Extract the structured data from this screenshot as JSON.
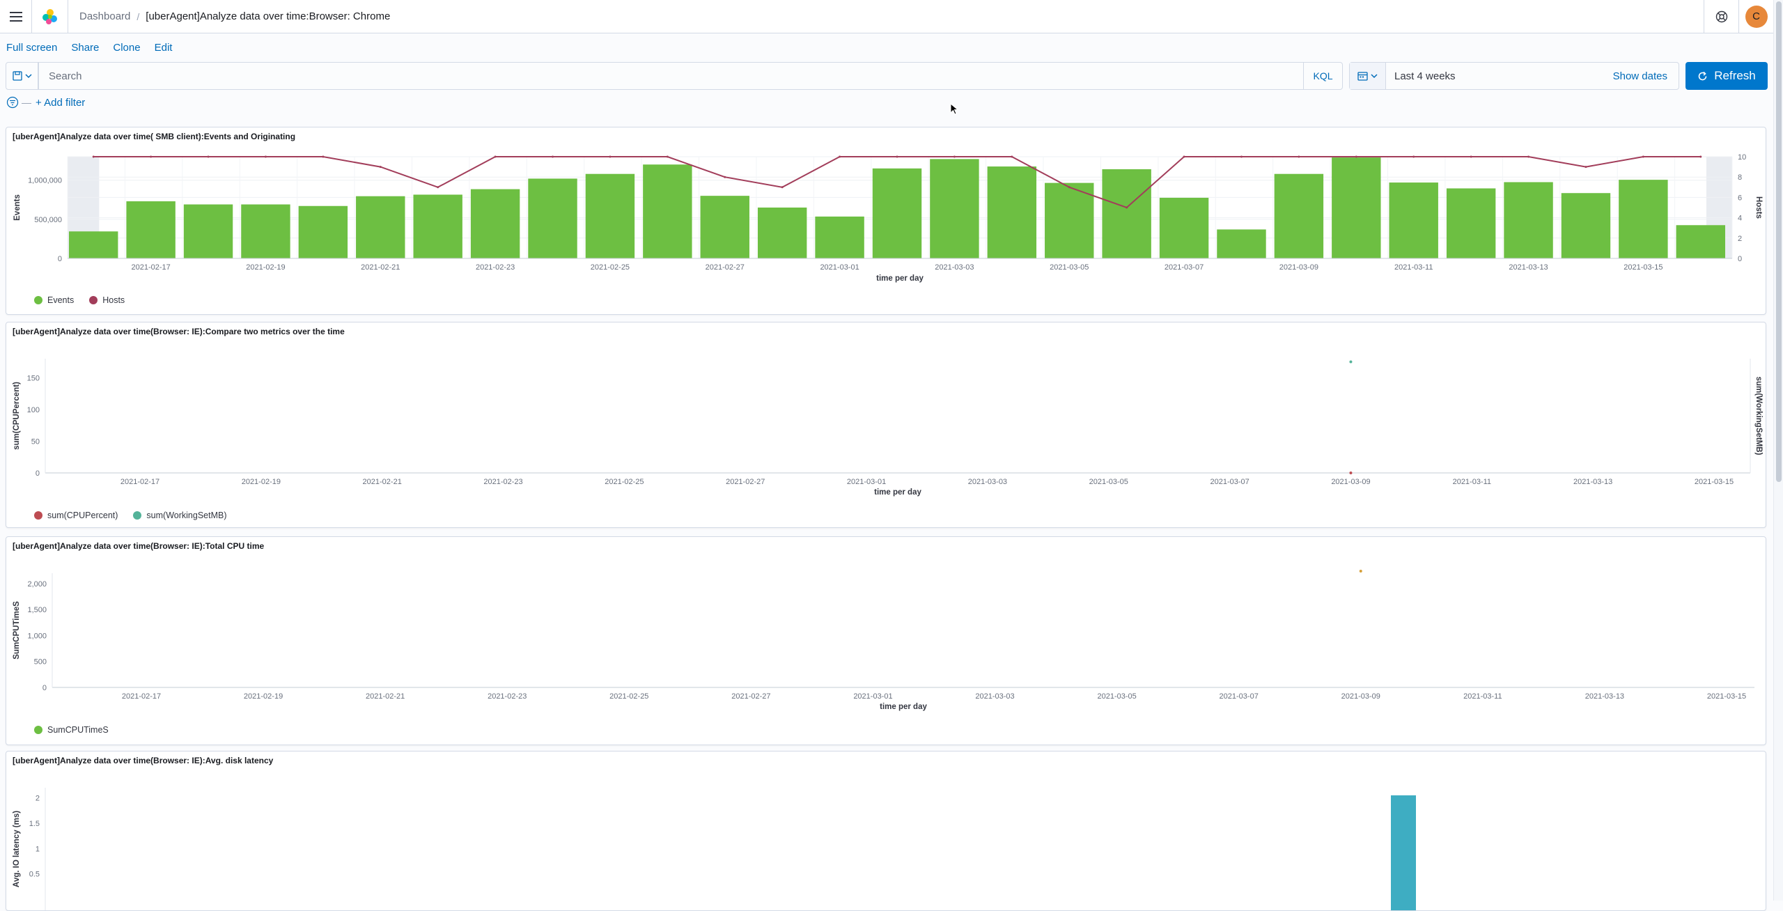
{
  "breadcrumbs": {
    "parent": "Dashboard",
    "current": "[uberAgent]Analyze data over time:Browser: Chrome"
  },
  "user": {
    "avatar_initial": "C"
  },
  "actions": {
    "full_screen": "Full screen",
    "share": "Share",
    "clone": "Clone",
    "edit": "Edit"
  },
  "query": {
    "search_placeholder": "Search",
    "language": "KQL"
  },
  "time": {
    "range": "Last 4 weeks",
    "show_dates": "Show dates",
    "refresh": "Refresh"
  },
  "filters": {
    "add_filter": "+ Add filter"
  },
  "panels": [
    {
      "title": "[uberAgent]Analyze data over time( SMB client):Events and Originating"
    },
    {
      "title": "[uberAgent]Analyze data over time(Browser: IE):Compare two metrics over the time"
    },
    {
      "title": "[uberAgent]Analyze data over time(Browser: IE):Total CPU time"
    },
    {
      "title": "[uberAgent]Analyze data over time(Browser: IE):Avg. disk latency"
    }
  ],
  "chart_data": [
    {
      "type": "bar",
      "title": "[uberAgent]Analyze data over time( SMB client):Events and Originating",
      "xlabel": "time per day",
      "ylabel": "Events",
      "y2label": "Hosts",
      "categories": [
        "2021-02-16",
        "2021-02-17",
        "2021-02-18",
        "2021-02-19",
        "2021-02-20",
        "2021-02-21",
        "2021-02-22",
        "2021-02-23",
        "2021-02-24",
        "2021-02-25",
        "2021-02-26",
        "2021-02-27",
        "2021-02-28",
        "2021-03-01",
        "2021-03-02",
        "2021-03-03",
        "2021-03-04",
        "2021-03-05",
        "2021-03-06",
        "2021-03-07",
        "2021-03-08",
        "2021-03-09",
        "2021-03-10",
        "2021-03-11",
        "2021-03-12",
        "2021-03-13",
        "2021-03-14",
        "2021-03-15",
        "2021-03-16"
      ],
      "x_tick_labels": [
        "2021-02-17",
        "2021-02-19",
        "2021-02-21",
        "2021-02-23",
        "2021-02-25",
        "2021-02-27",
        "2021-03-01",
        "2021-03-03",
        "2021-03-05",
        "2021-03-07",
        "2021-03-09",
        "2021-03-11",
        "2021-03-13",
        "2021-03-15"
      ],
      "ylim": [
        0,
        1300000
      ],
      "y_ticks": [
        "0",
        "500,000",
        "1,000,000"
      ],
      "y2lim": [
        0,
        10
      ],
      "y2_ticks": [
        "0",
        "2",
        "4",
        "6",
        "8",
        "10"
      ],
      "series": [
        {
          "name": "Events",
          "type": "bar",
          "color": "#6dbf42",
          "values": [
            345000,
            730000,
            690000,
            690000,
            670000,
            795000,
            815000,
            885000,
            1020000,
            1080000,
            1200000,
            800000,
            650000,
            535000,
            1150000,
            1270000,
            1175000,
            965000,
            1140000,
            775000,
            370000,
            1080000,
            1290000,
            970000,
            895000,
            975000,
            835000,
            1005000,
            425000
          ]
        },
        {
          "name": "Hosts",
          "type": "line",
          "color": "#a23d5a",
          "values": [
            10,
            10,
            10,
            10,
            10,
            9,
            7,
            10,
            10,
            10,
            10,
            8,
            7,
            10,
            10,
            10,
            10,
            7,
            5,
            10,
            10,
            10,
            10,
            10,
            10,
            10,
            9,
            10,
            10
          ]
        }
      ],
      "legend_position": "bottom-left",
      "grid": true
    },
    {
      "type": "line",
      "title": "[uberAgent]Analyze data over time(Browser: IE):Compare two metrics over the time",
      "xlabel": "time per day",
      "ylabel": "sum(CPUPercent)",
      "y2label": "sum(WorkingSetMB)",
      "x_tick_labels": [
        "2021-02-17",
        "2021-02-19",
        "2021-02-21",
        "2021-02-23",
        "2021-02-25",
        "2021-02-27",
        "2021-03-01",
        "2021-03-03",
        "2021-03-05",
        "2021-03-07",
        "2021-03-09",
        "2021-03-11",
        "2021-03-13",
        "2021-03-15"
      ],
      "ylim": [
        0,
        180
      ],
      "y_ticks": [
        "0",
        "50",
        "100",
        "150"
      ],
      "series": [
        {
          "name": "sum(CPUPercent)",
          "color": "#bd4c52",
          "points": [
            {
              "x": "2021-03-09",
              "y": 0
            }
          ]
        },
        {
          "name": "sum(WorkingSetMB)",
          "color": "#54b399",
          "points": [
            {
              "x": "2021-03-09",
              "y": 175
            }
          ]
        }
      ],
      "legend_position": "bottom-left"
    },
    {
      "type": "line",
      "title": "[uberAgent]Analyze data over time(Browser: IE):Total CPU time",
      "xlabel": "time per day",
      "ylabel": "SumCPUTimeS",
      "x_tick_labels": [
        "2021-02-17",
        "2021-02-19",
        "2021-02-21",
        "2021-02-23",
        "2021-02-25",
        "2021-02-27",
        "2021-03-01",
        "2021-03-03",
        "2021-03-05",
        "2021-03-07",
        "2021-03-09",
        "2021-03-11",
        "2021-03-13",
        "2021-03-15"
      ],
      "ylim": [
        0,
        2200
      ],
      "y_ticks": [
        "0",
        "500",
        "1,000",
        "1,500",
        "2,000"
      ],
      "series": [
        {
          "name": "SumCPUTimeS",
          "color": "#d6a03a",
          "points": [
            {
              "x": "2021-03-09",
              "y": 2240
            }
          ]
        }
      ],
      "legend_position": "bottom-left"
    },
    {
      "type": "bar",
      "title": "[uberAgent]Analyze data over time(Browser: IE):Avg. disk latency",
      "ylabel": "Avg. IO latency (ms)",
      "ylim": [
        0,
        2.2
      ],
      "y_ticks": [
        "0.5",
        "1",
        "1.5",
        "2"
      ],
      "series": [
        {
          "name": "Avg. IO latency (ms)",
          "color": "#3eadc2",
          "points": [
            {
              "x": "2021-03-10",
              "y": 2.05
            }
          ]
        }
      ]
    }
  ]
}
